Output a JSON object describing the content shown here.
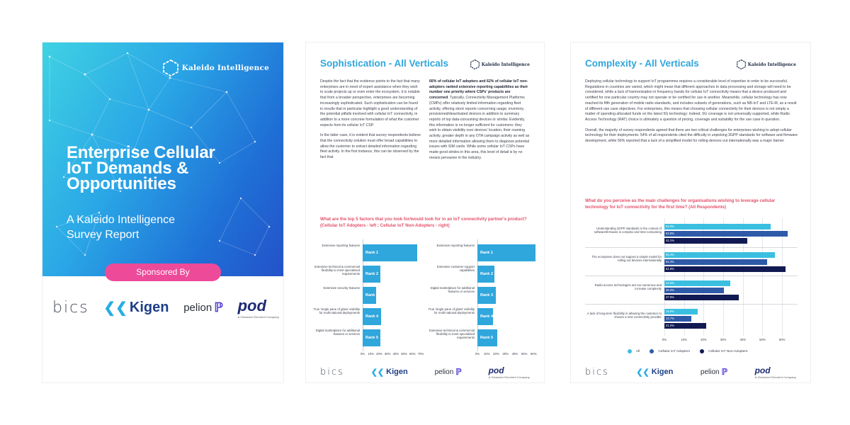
{
  "cover": {
    "brand": "Kaleido Intelligence",
    "title_lines": [
      "Enterprise Cellular",
      "IoT Demands &",
      "Opportunities"
    ],
    "subtitle_lines": [
      "A Kaleido Intelligence",
      "Survey Report"
    ],
    "sponsored_label": "Sponsored By",
    "colors": {
      "gradient_start": "#3fd2e3",
      "gradient_end": "#2452c8",
      "sponsor_pill": "#ee4a9a"
    }
  },
  "sponsors": {
    "bics": "bics",
    "kigen": "Kigen",
    "pelion": "pelion",
    "pod": "pod",
    "pod_tagline": "A Giesecke+Devrient Company"
  },
  "page1": {
    "title": "Sophistication - All Verticals",
    "brand": "Kaleido Intelligence",
    "col1": [
      "Despite the fact that the evidence points to the fact that many enterprises are in need of expert assistance when they wish to scale projects up or even enter the ecosystem, it is notable that from a broader perspective, enterprises are becoming increasingly sophisticated. Such sophistication can be found in results that in particular highlight a good understanding of the potential pitfalls involved with cellular IoT connectivity, in addition to a more concrete formulation of what the customer expects from its cellular IoT CSP.",
      "In the latter case, it is evident that survey respondents believe that the connectivity solution must offer broad capabilities to allow the customer to extract detailed information regarding fleet activity. In the first instance, this can be observed by the fact that"
    ],
    "col2_bold": "66% of cellular IoT adopters and 62% of cellular IoT non-adopters ranked extensive reporting capabilities as their number one priority where CSPs' products are concerned",
    "col2_rest": ". Typically, Connectivity Management Platforms (CMPs) offer relatively limited information regarding fleet activity, offering stock reports concerning usage, inventory, provisioned/deactivated devices in addition to summary reports of top data-consuming devices or similar. Evidently, this information is no longer sufficient for customers: they wish to obtain visibility over devices' location, their roaming activity, greater depth in any OTA campaign activity as well as more detailed information allowing them to diagnose potential issues with SIM cards. While some cellular IoT CSPs have made good strides in this area, this level of detail is by no means pervasive in the industry.",
    "question": "What are the top 5 factors that you look for/would look for in an IoT connectivity partner's product? (Cellular IoT Adopters - left ; Cellular IoT Non-Adopters - right)"
  },
  "chart_data": [
    {
      "type": "bar",
      "title": "Cellular IoT Adopters",
      "categories": [
        "Extensive reporting features",
        "Extensive technical & commercial flexibility to meet specialised requirements",
        "Extensive security features",
        "True 'single pane of glass' visibility for multi-national deployments",
        "Digital marketplace for additional features or services"
      ],
      "rank_labels": [
        "Rank 1",
        "Rank 2",
        "Rank 3",
        "Rank 4",
        "Rank 5"
      ],
      "values": [
        66,
        21,
        16,
        22,
        21
      ],
      "ticks": [
        "0%",
        "10%",
        "20%",
        "30%",
        "40%",
        "50%",
        "60%",
        "70%"
      ],
      "xlim": [
        0,
        70
      ],
      "color": "#2fa6dc"
    },
    {
      "type": "bar",
      "title": "Cellular IoT Non-Adopters",
      "categories": [
        "Extensive reporting features",
        "Extensive customer support capabilities",
        "Digital marketplace for additional features or services",
        "True 'single pane of glass' visibility for multi-national deployments",
        "Extensive technical & commercial flexibility to meet specialised requirements"
      ],
      "rank_labels": [
        "Rank 1",
        "Rank 2",
        "Rank 3",
        "Rank 4",
        "Rank 5"
      ],
      "values": [
        62,
        18,
        20,
        17,
        21
      ],
      "ticks": [
        "0%",
        "10%",
        "20%",
        "30%",
        "40%",
        "50%",
        "60%"
      ],
      "xlim": [
        0,
        62
      ],
      "color": "#2fa6dc"
    },
    {
      "type": "bar",
      "categories": [
        "Understanding 3GPP standards in the context of software/firmware is complex and time-consuming",
        "The ecosystem does not support a simple model for rolling out devices internationally",
        "Radio access technologies are too numerous and increase complexity",
        "A lack of long-term flexibility in allowing the customer to choose a new connectivity provider"
      ],
      "series": [
        {
          "name": "All",
          "values": [
            54.0,
            56.3,
            33.6,
            16.9
          ],
          "labels": [
            "54.0%",
            "56.3%",
            "33.6%",
            "16.9%"
          ],
          "color": "#3bbfe0"
        },
        {
          "name": "Cellular IoT Adopters",
          "values": [
            62.8,
            52.3,
            30.4,
            13.7
          ],
          "labels": [
            "62.8%",
            "52.3%",
            "30.4%",
            "13.7%"
          ],
          "color": "#2e5aa8"
        },
        {
          "name": "Cellular IoT Non-Adopters",
          "values": [
            42.1,
            61.8,
            37.9,
            21.2
          ],
          "labels": [
            "42.1%",
            "61.8%",
            "37.9%",
            "21.2%"
          ],
          "color": "#111a52"
        }
      ],
      "ticks": [
        "0%",
        "10%",
        "20%",
        "30%",
        "40%",
        "50%",
        "60%"
      ],
      "xlim": [
        0,
        65
      ],
      "legend": "bottom"
    }
  ],
  "page2": {
    "title": "Complexity - All Verticals",
    "brand": "Kaleido Intelligence",
    "paragraphs": [
      "Deploying cellular technology to support IoT programmes requires a considerable level of expertise in order to be successful. Regulations in countries are varied, which might mean that different approaches to data processing and storage will need to be considered, while a lack of harmonisation in frequency bands for cellular IoT connectivity means that a device produced and certified for one particular country may not operate or be certified for use in another. Meanwhile, cellular technology has now reached its fifth generation of mobile radio standards, and includes subsets of generations, such as NB-IoT and LTE-M, as a result of different use case objectives. For enterprises, this means that choosing cellular connectivity for their devices is not simply a matter of spending allocated funds on the latest 5G technology: indeed, 5G coverage is not universally supported, while Radio Access Technology (RAT) choice is ultimately a question of pricing, coverage and suitability for the use case in question.",
      "Overall, the majority of survey respondents agreed that there are two critical challenges for enterprises wishing to adopt cellular technology for their deployments: 54% of all respondents cited the difficulty in unpicking 3GPP standards for software and firmware development, while 56% reported that a lack of a simplified model for rolling devices out internationally was a major barrier."
    ],
    "question": "What do you perceive as the main challenges for organisations wishing to leverage cellular technology for IoT connectivity for the first time? (All Respondents)"
  }
}
